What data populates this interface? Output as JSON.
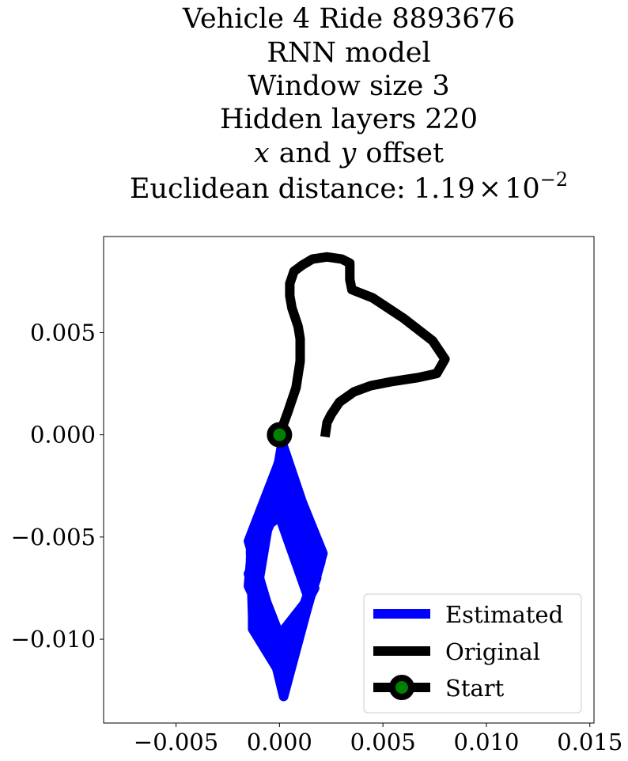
{
  "chart_data": {
    "type": "line",
    "title_lines": [
      "Vehicle 4 Ride 8893676",
      "RNN model",
      "Window size 3",
      "Hidden layers 220"
    ],
    "title_offset": {
      "x_var": "x",
      "conj": "and",
      "y_var": "y",
      "suffix": "offset"
    },
    "title_distance": {
      "label": "Euclidean distance:",
      "mantissa": "1.19",
      "times": "×",
      "base": "10",
      "exponent": "−2"
    },
    "xlim": [
      -0.0085,
      0.0152
    ],
    "ylim": [
      -0.0141,
      0.0097
    ],
    "xticks": [
      {
        "value": -0.005,
        "label": "−0.005"
      },
      {
        "value": 0.0,
        "label": "0.000"
      },
      {
        "value": 0.005,
        "label": "0.005"
      },
      {
        "value": 0.01,
        "label": "0.010"
      },
      {
        "value": 0.015,
        "label": "0.015"
      }
    ],
    "yticks": [
      {
        "value": 0.005,
        "label": "0.005"
      },
      {
        "value": 0.0,
        "label": "0.000"
      },
      {
        "value": -0.005,
        "label": "−0.005"
      },
      {
        "value": -0.01,
        "label": "−0.010"
      }
    ],
    "grid": false,
    "legend_position": "lower-right",
    "legend": [
      {
        "label": "Estimated",
        "color": "#0000ff",
        "marker": false
      },
      {
        "label": "Original",
        "color": "#000000",
        "marker": false
      },
      {
        "label": "Start",
        "color": "#000000",
        "marker": true,
        "marker_face": "#008000"
      }
    ],
    "series": [
      {
        "name": "Original",
        "color": "#000000",
        "points": [
          [
            0.0,
            0.0
          ],
          [
            0.0004,
            0.0011
          ],
          [
            0.0008,
            0.0023
          ],
          [
            0.001,
            0.0036
          ],
          [
            0.001,
            0.0047
          ],
          [
            0.0009,
            0.0053
          ],
          [
            0.0006,
            0.0062
          ],
          [
            0.0005,
            0.0068
          ],
          [
            0.0005,
            0.0074
          ],
          [
            0.0007,
            0.008
          ],
          [
            0.0011,
            0.0083
          ],
          [
            0.0016,
            0.0086
          ],
          [
            0.0023,
            0.0087
          ],
          [
            0.003,
            0.0086
          ],
          [
            0.0034,
            0.0084
          ],
          [
            0.0034,
            0.008
          ],
          [
            0.0034,
            0.0076
          ],
          [
            0.0035,
            0.0071
          ],
          [
            0.0045,
            0.0067
          ],
          [
            0.006,
            0.0057
          ],
          [
            0.0074,
            0.0046
          ],
          [
            0.008,
            0.0037
          ],
          [
            0.0076,
            0.003
          ],
          [
            0.0067,
            0.0028
          ],
          [
            0.0054,
            0.0026
          ],
          [
            0.0044,
            0.0024
          ],
          [
            0.0036,
            0.0021
          ],
          [
            0.0029,
            0.0016
          ],
          [
            0.0025,
            0.001
          ],
          [
            0.0023,
            0.0006
          ],
          [
            0.0022,
            -0.0001
          ]
        ]
      },
      {
        "name": "Estimated",
        "color": "#0000ff",
        "points": [
          [
            0.0,
            0.0
          ],
          [
            0.002,
            -0.006
          ],
          [
            0.0002,
            -0.0128
          ],
          [
            -0.0012,
            -0.007
          ],
          [
            0.0003,
            -0.0013
          ],
          [
            0.0021,
            -0.0058
          ],
          [
            0.0003,
            -0.0122
          ],
          [
            -0.0014,
            -0.0055
          ],
          [
            0.0002,
            -0.0006
          ],
          [
            0.0019,
            -0.0064
          ],
          [
            0.0001,
            -0.0118
          ],
          [
            -0.0013,
            -0.0095
          ],
          [
            -0.0013,
            -0.0062
          ],
          [
            0.0002,
            -0.0021
          ],
          [
            0.0018,
            -0.007
          ],
          [
            0.0003,
            -0.0113
          ],
          [
            -0.0015,
            -0.0052
          ],
          [
            0.0001,
            -0.001
          ],
          [
            0.002,
            -0.0059
          ],
          [
            0.0002,
            -0.0125
          ],
          [
            -0.0011,
            -0.008
          ],
          [
            -0.0015,
            -0.0068
          ],
          [
            0.0,
            -0.0033
          ],
          [
            0.0017,
            -0.0075
          ],
          [
            0.0002,
            -0.0104
          ],
          [
            -0.0013,
            -0.0089
          ],
          [
            -0.0014,
            -0.0057
          ],
          [
            0.0001,
            -0.0016
          ],
          [
            0.002,
            -0.0062
          ],
          [
            0.0003,
            -0.012
          ],
          [
            -0.0012,
            -0.0092
          ],
          [
            -0.0014,
            -0.0061
          ],
          [
            0.0,
            -0.0028
          ],
          [
            0.0018,
            -0.0066
          ],
          [
            0.0002,
            -0.011
          ],
          [
            -0.0015,
            -0.0074
          ],
          [
            -0.0013,
            -0.005
          ],
          [
            0.0,
            -0.004
          ],
          [
            0.0014,
            -0.008
          ],
          [
            0.0,
            -0.0098
          ],
          [
            -0.001,
            -0.0072
          ],
          [
            0.0001,
            -0.0005
          ]
        ]
      }
    ],
    "start_point": {
      "name": "Start",
      "x": 0.0,
      "y": 0.0,
      "color": "#000000",
      "face": "#008000"
    }
  }
}
